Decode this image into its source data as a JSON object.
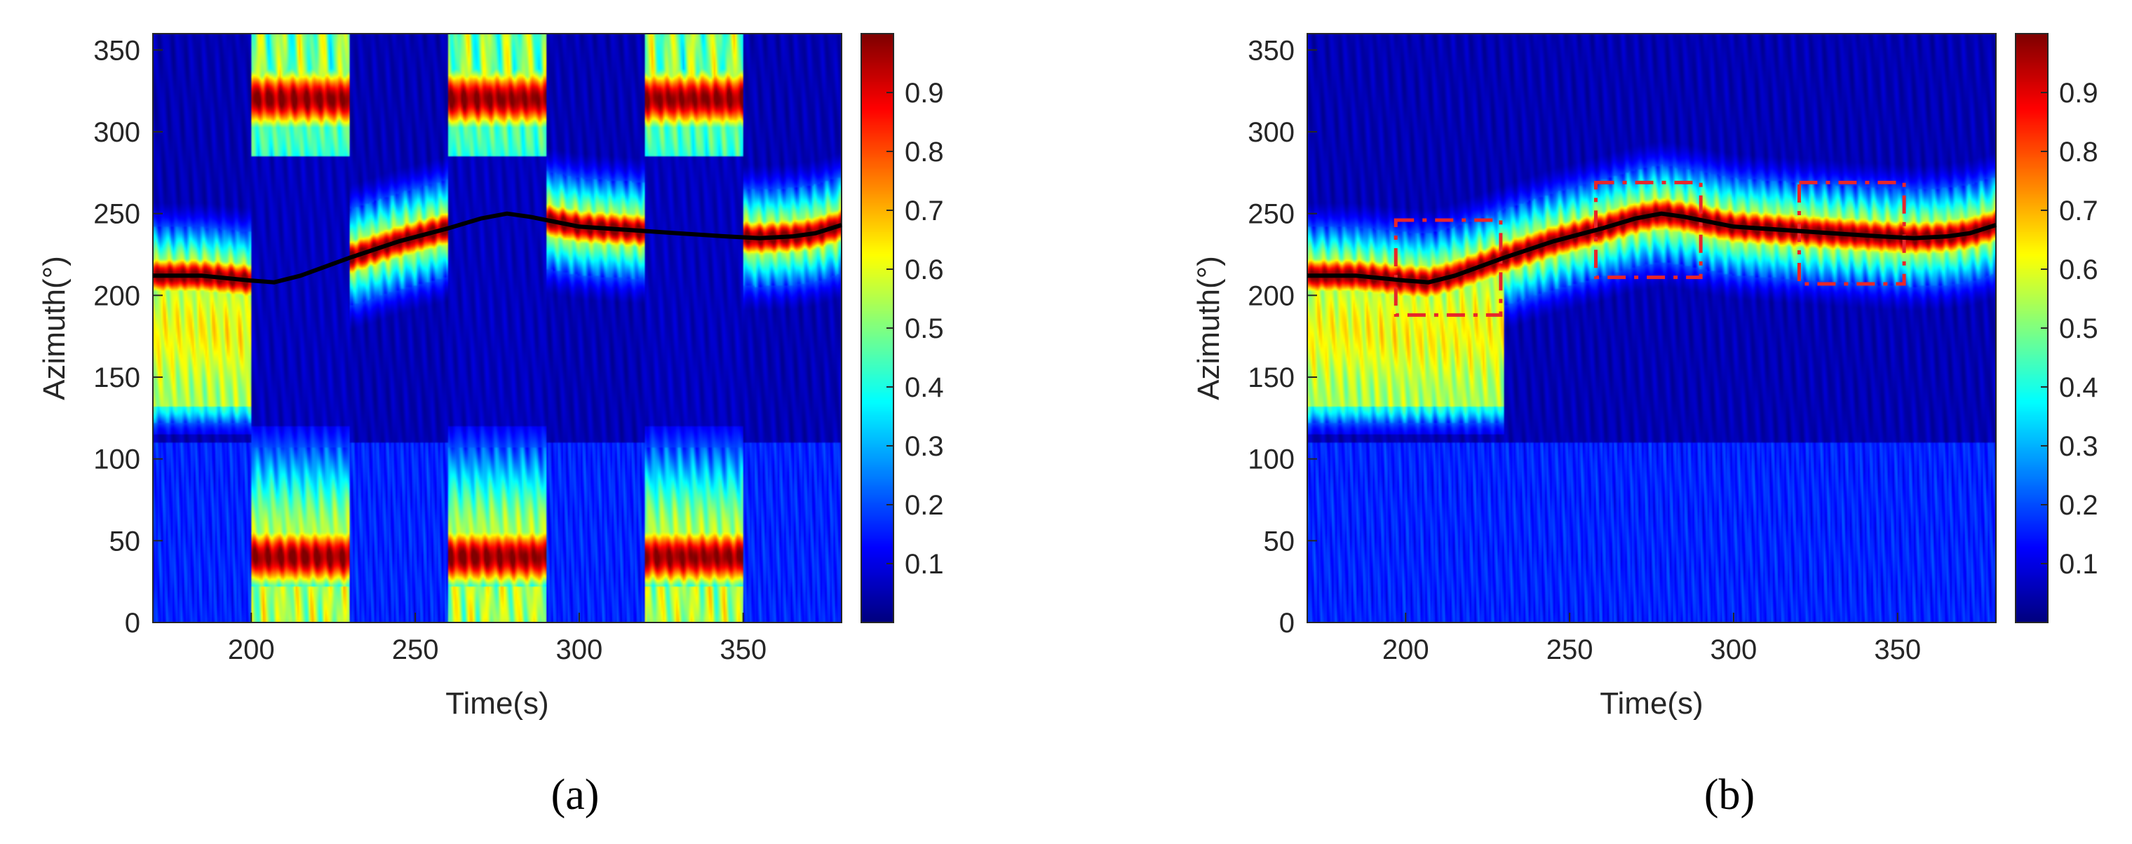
{
  "chart_data": [
    {
      "type": "heatmap",
      "panel_label": "(a)",
      "xlabel": "Time(s)",
      "ylabel": "Azimuth(°)",
      "xlim": [
        170,
        380
      ],
      "ylim": [
        0,
        360
      ],
      "xticks": [
        "200",
        "250",
        "300",
        "350"
      ],
      "xtick_values": [
        200,
        250,
        300,
        350
      ],
      "yticks": [
        "0",
        "50",
        "100",
        "150",
        "200",
        "250",
        "300",
        "350"
      ],
      "ytick_values": [
        0,
        50,
        100,
        150,
        200,
        250,
        300,
        350
      ],
      "colorbar": {
        "colormap": "jet",
        "range": [
          0.0,
          1.0
        ],
        "ticks": [
          "0.1",
          "0.2",
          "0.3",
          "0.4",
          "0.5",
          "0.6",
          "0.7",
          "0.8",
          "0.9"
        ],
        "tick_values": [
          0.1,
          0.2,
          0.3,
          0.4,
          0.5,
          0.6,
          0.7,
          0.8,
          0.9
        ]
      },
      "grid": false,
      "track_line": {
        "color": "#000000",
        "x": [
          170,
          185,
          200,
          207,
          215,
          230,
          245,
          260,
          270,
          278,
          285,
          300,
          315,
          330,
          345,
          355,
          365,
          372,
          380
        ],
        "y": [
          212,
          212,
          209,
          208,
          212,
          223,
          233,
          241,
          247,
          250,
          248,
          242,
          240,
          238,
          236,
          235,
          236,
          238,
          243
        ]
      },
      "segments": [
        {
          "x": [
            170,
            200
          ],
          "mode": "normal",
          "lower_tail": true
        },
        {
          "x": [
            200,
            230
          ],
          "mode": "ambiguous"
        },
        {
          "x": [
            230,
            260
          ],
          "mode": "normal",
          "lower_tail": false
        },
        {
          "x": [
            260,
            290
          ],
          "mode": "ambiguous"
        },
        {
          "x": [
            290,
            320
          ],
          "mode": "normal",
          "lower_tail": false
        },
        {
          "x": [
            320,
            350
          ],
          "mode": "ambiguous"
        },
        {
          "x": [
            350,
            380
          ],
          "mode": "normal",
          "lower_tail": false
        }
      ]
    },
    {
      "type": "heatmap",
      "panel_label": "(b)",
      "xlabel": "Time(s)",
      "ylabel": "Azimuth(°)",
      "xlim": [
        170,
        380
      ],
      "ylim": [
        0,
        360
      ],
      "xticks": [
        "200",
        "250",
        "300",
        "350"
      ],
      "xtick_values": [
        200,
        250,
        300,
        350
      ],
      "yticks": [
        "0",
        "50",
        "100",
        "150",
        "200",
        "250",
        "300",
        "350"
      ],
      "ytick_values": [
        0,
        50,
        100,
        150,
        200,
        250,
        300,
        350
      ],
      "colorbar": {
        "colormap": "jet",
        "range": [
          0.0,
          1.0
        ],
        "ticks": [
          "0.1",
          "0.2",
          "0.3",
          "0.4",
          "0.5",
          "0.6",
          "0.7",
          "0.8",
          "0.9"
        ],
        "tick_values": [
          0.1,
          0.2,
          0.3,
          0.4,
          0.5,
          0.6,
          0.7,
          0.8,
          0.9
        ]
      },
      "grid": false,
      "track_line": {
        "color": "#000000",
        "x": [
          170,
          185,
          200,
          207,
          215,
          230,
          245,
          260,
          270,
          278,
          285,
          300,
          315,
          330,
          345,
          355,
          365,
          372,
          380
        ],
        "y": [
          212,
          212,
          209,
          208,
          212,
          223,
          233,
          241,
          247,
          250,
          248,
          242,
          240,
          238,
          236,
          235,
          236,
          238,
          243
        ]
      },
      "segments": [
        {
          "x": [
            170,
            230
          ],
          "mode": "normal",
          "lower_tail": true
        },
        {
          "x": [
            230,
            380
          ],
          "mode": "normal",
          "lower_tail": false
        }
      ],
      "annotations": [
        {
          "shape": "dashed-rectangle",
          "color": "#e8262a",
          "x": [
            197,
            229
          ],
          "y": [
            188,
            246
          ]
        },
        {
          "shape": "dashed-rectangle",
          "color": "#e8262a",
          "x": [
            258,
            290
          ],
          "y": [
            211,
            269
          ]
        },
        {
          "shape": "dashed-rectangle",
          "color": "#e8262a",
          "x": [
            320,
            352
          ],
          "y": [
            207,
            269
          ]
        }
      ]
    }
  ]
}
